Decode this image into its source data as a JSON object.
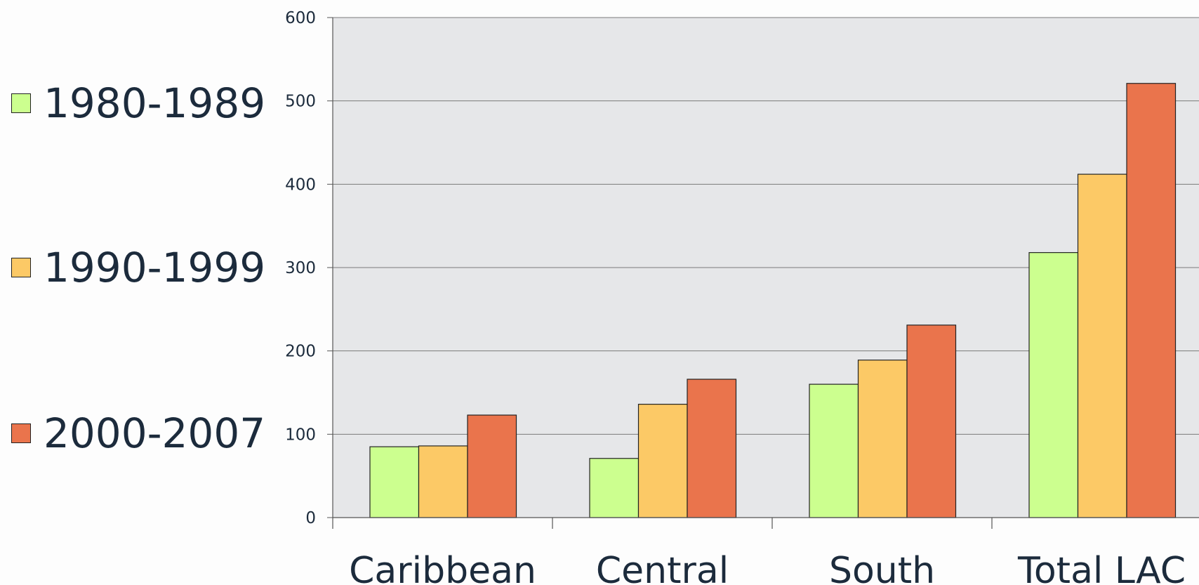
{
  "chart_data": {
    "type": "bar",
    "categories": [
      "Caribbean",
      "Central",
      "South",
      "Total LAC"
    ],
    "series": [
      {
        "name": "1980-1989",
        "color": "#ccff8f",
        "values": [
          85,
          71,
          160,
          318
        ]
      },
      {
        "name": "1990-1999",
        "color": "#fcc966",
        "values": [
          86,
          136,
          189,
          412
        ]
      },
      {
        "name": "2000-2007",
        "color": "#ea744c",
        "values": [
          123,
          166,
          231,
          521
        ]
      }
    ],
    "ylim": [
      0,
      600
    ],
    "yticks": [
      0,
      100,
      200,
      300,
      400,
      500,
      600
    ],
    "grid": true,
    "legend_position": "left",
    "plot_background": "#e6e7e9",
    "gridline_color": "#7a7a7a"
  }
}
